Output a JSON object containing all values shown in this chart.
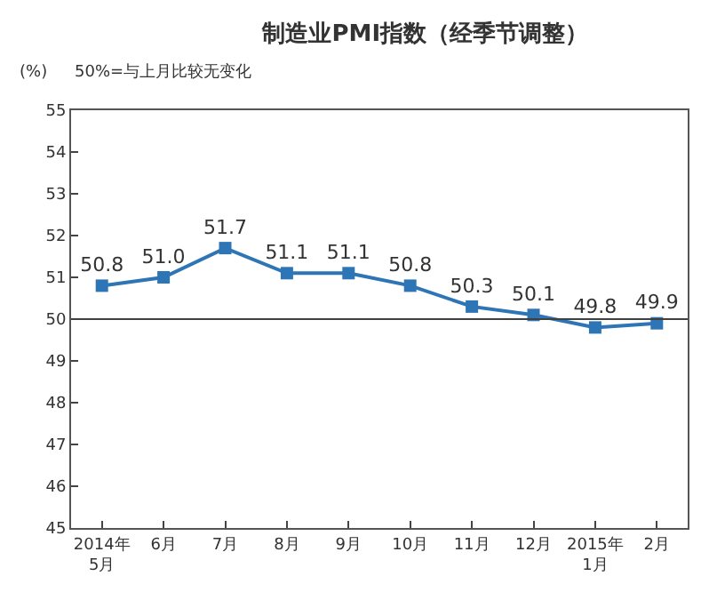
{
  "chart_data": {
    "type": "line",
    "title": "制造业PMI指数（经季节调整）",
    "ylabel": "(%)",
    "annotations": [
      "50%=与上月比较无变化"
    ],
    "categories": [
      "2014年\n5月",
      "6月",
      "7月",
      "8月",
      "9月",
      "10月",
      "11月",
      "12月",
      "2015年\n1月",
      "2月"
    ],
    "series": [
      {
        "color": "#2e75b6",
        "values": [
          50.8,
          51.0,
          51.7,
          51.1,
          51.1,
          50.8,
          50.3,
          50.1,
          49.8,
          49.9
        ],
        "value_labels": [
          "50.8",
          "51.0",
          "51.7",
          "51.1",
          "51.1",
          "50.8",
          "50.3",
          "50.1",
          "49.8",
          "49.9"
        ]
      }
    ],
    "ylim": [
      45,
      55
    ],
    "yticks": [
      45,
      46,
      47,
      48,
      49,
      50,
      51,
      52,
      53,
      54,
      55
    ],
    "ref_lines": [
      {
        "axis": "y",
        "value": 50,
        "color": "#404040"
      }
    ],
    "marker": "square",
    "line_style": "solid",
    "legend": false
  }
}
